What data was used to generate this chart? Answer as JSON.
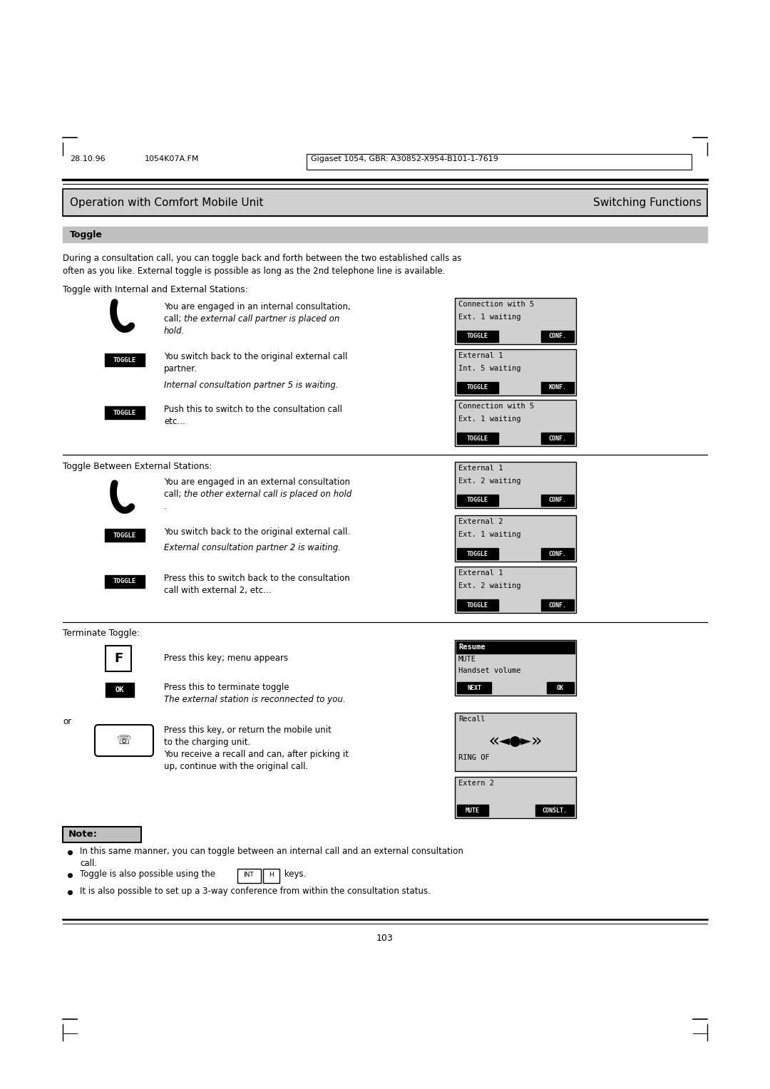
{
  "page_width": 10.8,
  "page_height": 15.28,
  "bg_color": "#ffffff",
  "header_date": "28.10.96",
  "header_file": "1054K07A.FM",
  "header_right": "Gigaset 1054, GBR: A30852-X954-B101-1-7619",
  "title_left": "Operation with Comfort Mobile Unit",
  "title_right": "Switching Functions",
  "section_toggle": "Toggle",
  "intro_line1": "During a consultation call, you can toggle back and forth between the two established calls as",
  "intro_line2": "often as you like. External toggle is possible as long as the 2nd telephone line is available.",
  "subsection1": "Toggle with Internal and External Stations:",
  "subsection2": "Toggle Between External Stations:",
  "subsection3": "Terminate Toggle:",
  "page_number": "103",
  "note_label": "Note:",
  "note_b1a": "In this same manner, you can toggle between an internal call and an external consultation",
  "note_b1b": "call.",
  "note_b2": "Toggle is also possible using the            keys.",
  "note_b3": "It is also possible to set up a 3-way conference from within the consultation status.",
  "gray_box": "#d0d0d0",
  "gray_bar": "#c0c0c0"
}
